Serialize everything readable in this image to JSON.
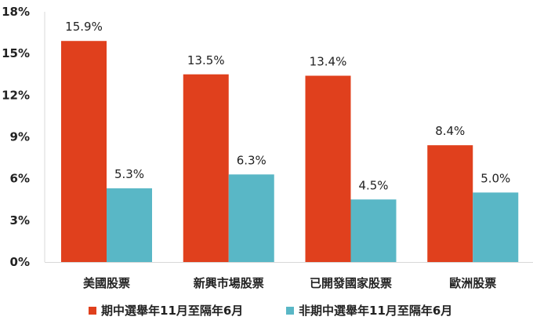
{
  "chart_data": {
    "type": "bar",
    "categories": [
      "美國股票",
      "新興市場股票",
      "已開發國家股票",
      "歐洲股票"
    ],
    "series": [
      {
        "name": "期中選舉年11月至隔年6月",
        "values": [
          15.9,
          13.5,
          13.4,
          8.4
        ],
        "labels": [
          "15.9%",
          "13.5%",
          "13.4%",
          "8.4%"
        ]
      },
      {
        "name": "非期中選舉年11月至隔年6月",
        "values": [
          5.3,
          6.3,
          4.5,
          5.0
        ],
        "labels": [
          "5.3%",
          "6.3%",
          "4.5%",
          "5.0%"
        ]
      }
    ],
    "y_ticks": [
      {
        "value": 0,
        "label": "0%"
      },
      {
        "value": 3,
        "label": "3%"
      },
      {
        "value": 6,
        "label": "6%"
      },
      {
        "value": 9,
        "label": "9%"
      },
      {
        "value": 12,
        "label": "12%"
      },
      {
        "value": 15,
        "label": "15%"
      },
      {
        "value": 18,
        "label": "18%"
      }
    ],
    "ylim": [
      0,
      18
    ],
    "grid": false,
    "legend_position": "bottom",
    "colors": [
      "#e0401d",
      "#59b7c6"
    ]
  }
}
